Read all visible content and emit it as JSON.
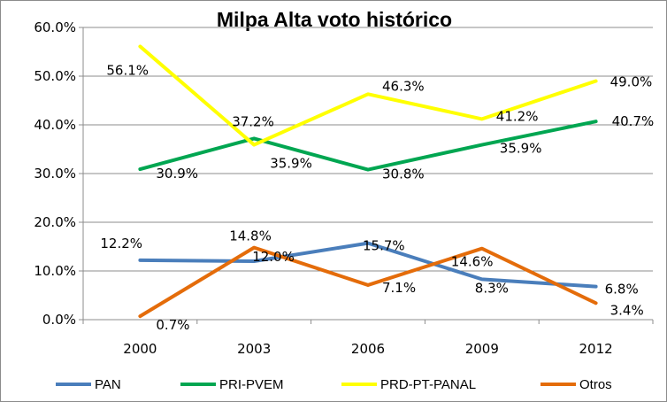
{
  "chart_data": {
    "type": "line",
    "title": "Milpa Alta voto histórico",
    "xlabel": "",
    "ylabel": "",
    "categories": [
      "2000",
      "2003",
      "2006",
      "2009",
      "2012"
    ],
    "ylim": [
      0,
      60
    ],
    "y_ticks": [
      "0.0%",
      "10.0%",
      "20.0%",
      "30.0%",
      "40.0%",
      "50.0%",
      "60.0%"
    ],
    "grid": "horizontal",
    "legend_position": "bottom",
    "series": [
      {
        "name": "PAN",
        "color": "#4a7ebb",
        "values": [
          12.2,
          12.0,
          15.7,
          8.3,
          6.8
        ],
        "labels": [
          "12.2%",
          "12.0%",
          "15.7%",
          "8.3%",
          "6.8%"
        ]
      },
      {
        "name": "PRI-PVEM",
        "color": "#00a651",
        "values": [
          30.9,
          37.2,
          30.8,
          35.9,
          40.7
        ],
        "labels": [
          "30.9%",
          "37.2%",
          "30.8%",
          "35.9%",
          "40.7%"
        ]
      },
      {
        "name": "PRD-PT-PANAL",
        "color": "#ffff00",
        "values": [
          56.1,
          35.9,
          46.3,
          41.2,
          49.0
        ],
        "labels": [
          "56.1%",
          "35.9%",
          "46.3%",
          "41.2%",
          "49.0%"
        ]
      },
      {
        "name": "Otros",
        "color": "#e46c0a",
        "values": [
          0.7,
          14.8,
          7.1,
          14.6,
          3.4
        ],
        "labels": [
          "0.7%",
          "14.8%",
          "7.1%",
          "14.6%",
          "3.4%"
        ]
      }
    ]
  }
}
